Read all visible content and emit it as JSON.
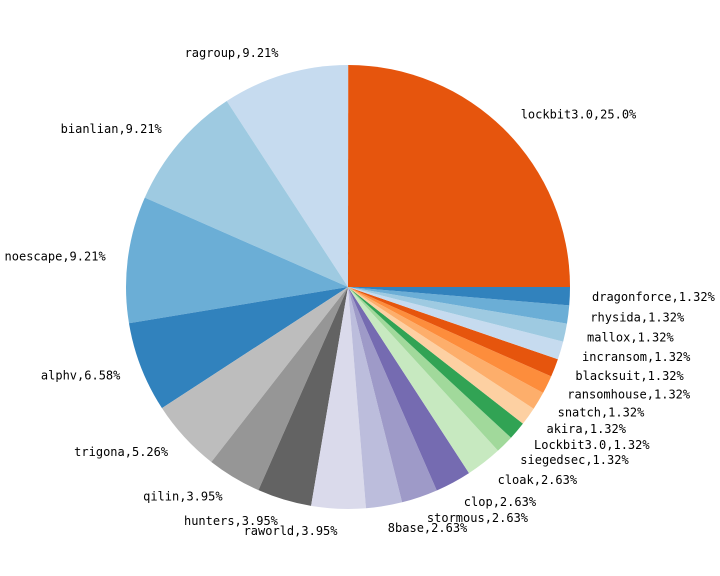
{
  "chart_data": {
    "type": "pie",
    "start_angle_deg": 0,
    "direction": "counterclockwise",
    "title": "",
    "slices": [
      {
        "label": "lockbit3.0,25.0%",
        "value": 25.0,
        "color": "#e6550d"
      },
      {
        "label": "ragroup,9.21%",
        "value": 9.21,
        "color": "#c6dbef"
      },
      {
        "label": "bianlian,9.21%",
        "value": 9.21,
        "color": "#9ecae1"
      },
      {
        "label": "noescape,9.21%",
        "value": 9.21,
        "color": "#6baed6"
      },
      {
        "label": "alphv,6.58%",
        "value": 6.58,
        "color": "#3182bd"
      },
      {
        "label": "trigona,5.26%",
        "value": 5.26,
        "color": "#bdbdbd"
      },
      {
        "label": "qilin,3.95%",
        "value": 3.95,
        "color": "#969696"
      },
      {
        "label": "hunters,3.95%",
        "value": 3.95,
        "color": "#636363"
      },
      {
        "label": "raworld,3.95%",
        "value": 3.95,
        "color": "#dadaeb"
      },
      {
        "label": "8base,2.63%",
        "value": 2.63,
        "color": "#bcbddc"
      },
      {
        "label": "stormous,2.63%",
        "value": 2.63,
        "color": "#9e9ac8"
      },
      {
        "label": "clop,2.63%",
        "value": 2.63,
        "color": "#756bb1"
      },
      {
        "label": "cloak,2.63%",
        "value": 2.63,
        "color": "#c7e9c0"
      },
      {
        "label": "siegedsec,1.32%",
        "value": 1.32,
        "color": "#a1d99b"
      },
      {
        "label": "Lockbit3.0,1.32%",
        "value": 1.32,
        "color": "#31a354"
      },
      {
        "label": "akira,1.32%",
        "value": 1.32,
        "color": "#fdd0a2"
      },
      {
        "label": "snatch,1.32%",
        "value": 1.32,
        "color": "#fdae6b"
      },
      {
        "label": "ransomhouse,1.32%",
        "value": 1.32,
        "color": "#fd8d3c"
      },
      {
        "label": "blacksuit,1.32%",
        "value": 1.32,
        "color": "#e6550d"
      },
      {
        "label": "incransom,1.32%",
        "value": 1.32,
        "color": "#c6dbef"
      },
      {
        "label": "mallox,1.32%",
        "value": 1.32,
        "color": "#9ecae1"
      },
      {
        "label": "rhysida,1.32%",
        "value": 1.32,
        "color": "#6baed6"
      },
      {
        "label": "dragonforce,1.32%",
        "value": 1.32,
        "color": "#3182bd"
      }
    ]
  }
}
